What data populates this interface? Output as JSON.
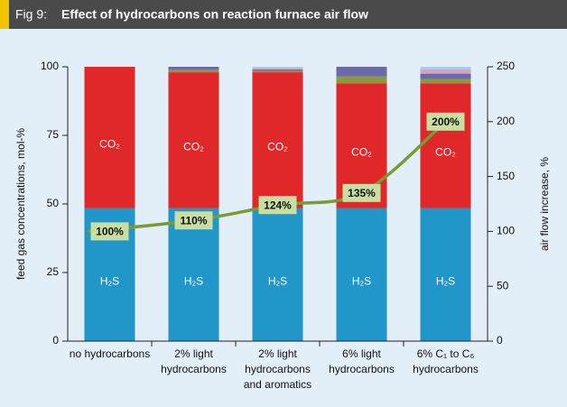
{
  "chart_data": {
    "type": "bar",
    "stacked": true,
    "figure_label": "Fig 9:",
    "title": "Effect of hydrocarbons on reaction furnace air flow",
    "ylabel": "feed gas concentrations, mol-%",
    "y2label": "air flow increase, %",
    "categories": [
      [
        "no hydrocarbons"
      ],
      [
        "2% light",
        "hydrocarbons"
      ],
      [
        "2% light",
        "hydrocarbons",
        "and aromatics"
      ],
      [
        "6% light",
        "hydrocarbons"
      ],
      [
        "6% C₁ to C₆",
        "hydrocarbons"
      ]
    ],
    "ylim": [
      0,
      100
    ],
    "yticks": [
      0,
      25,
      50,
      75,
      100
    ],
    "y2lim": [
      0,
      250
    ],
    "y2ticks": [
      0,
      50,
      100,
      150,
      200,
      250
    ],
    "series": [
      {
        "name": "H₂S",
        "color": "#2196c8",
        "values": [
          48.5,
          48.5,
          48.5,
          48.5,
          48.5
        ]
      },
      {
        "name": "CO₂",
        "color": "#e0282a",
        "values": [
          51.5,
          49.5,
          49.5,
          45.5,
          45.5
        ]
      },
      {
        "color": "#8a9a3a",
        "values": [
          0,
          1,
          0.5,
          2.5,
          1.5
        ]
      },
      {
        "color": "#6a6aa8",
        "values": [
          0,
          1,
          0.5,
          3.5,
          2
        ]
      },
      {
        "color": "#d9a0c4",
        "values": [
          0,
          0,
          0.5,
          0,
          1.5
        ]
      },
      {
        "color": "#a8cce4",
        "values": [
          0,
          0,
          0.5,
          0,
          1
        ]
      },
      {
        "type": "line",
        "axis": "y2",
        "color": "#7a9a34",
        "values": [
          100,
          110,
          124,
          135,
          200
        ],
        "value_labels": [
          "100%",
          "110%",
          "124%",
          "135%",
          "200%"
        ]
      }
    ]
  }
}
